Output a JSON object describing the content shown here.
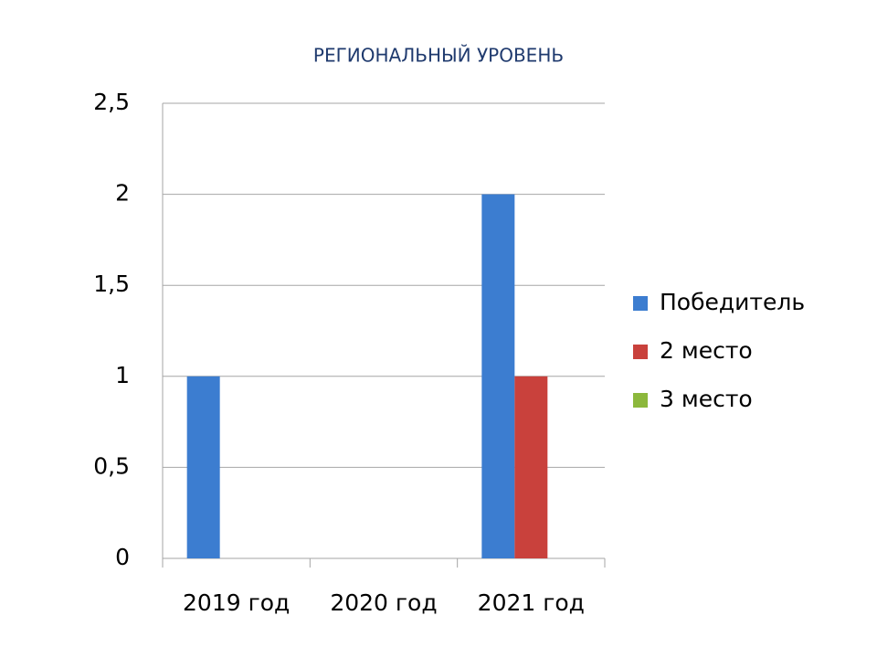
{
  "chart_data": {
    "type": "bar",
    "title": "РЕГИОНАЛЬНЫЙ УРОВЕНЬ",
    "categories": [
      "2019 год",
      "2020 год",
      "2021 год"
    ],
    "series": [
      {
        "name": "Победитель",
        "color": "#3c7dd0",
        "values": [
          1,
          0,
          2
        ]
      },
      {
        "name": "2 место",
        "color": "#c9413c",
        "values": [
          0,
          0,
          1
        ]
      },
      {
        "name": "3 место",
        "color": "#8cb83c",
        "values": [
          0,
          0,
          0
        ]
      }
    ],
    "ylim": [
      0,
      2.5
    ],
    "yticks": [
      0,
      {
        "value": 0.5,
        "label": "0,5"
      },
      1,
      {
        "value": 1.5,
        "label": "1,5"
      },
      2,
      {
        "value": 2.5,
        "label": "2,5"
      }
    ],
    "grid": true,
    "legend": "right"
  }
}
